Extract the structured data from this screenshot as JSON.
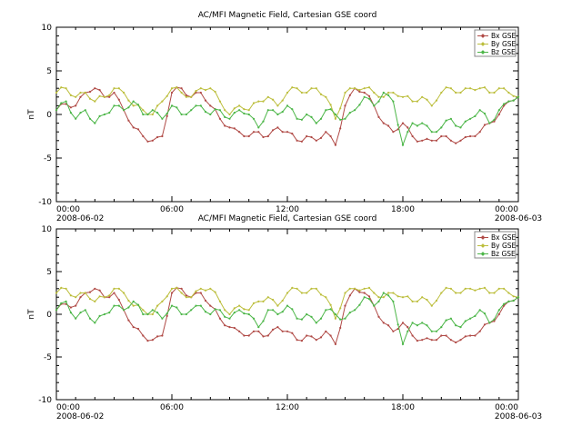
{
  "chart_data": {
    "type": "line",
    "title": "AC/MFI Magnetic Field, Cartesian GSE coord",
    "panels": [
      {
        "title": "AC/MFI Magnetic Field, Cartesian GSE coord"
      },
      {
        "title": "AC/MFI Magnetic Field, Cartesian GSE coord"
      }
    ],
    "ylabel": "nT",
    "ylim": [
      -10,
      10
    ],
    "yticks": [
      -10,
      -5,
      0,
      5,
      10
    ],
    "xlim_hours": [
      0,
      24
    ],
    "x_start_hour": 0,
    "x_step_hours": 0.25,
    "grid": false,
    "legend_position": "top-right",
    "xticks": [
      {
        "hour": 0,
        "label": "00:00",
        "date": "2008-06-02"
      },
      {
        "hour": 6,
        "label": "06:00"
      },
      {
        "hour": 12,
        "label": "12:00"
      },
      {
        "hour": 18,
        "label": "18:00"
      },
      {
        "hour": 24,
        "label": "00:00",
        "date": "2008-06-03"
      }
    ],
    "colors": {
      "axis": "#000000",
      "legend_border": "#888888",
      "background": "#ffffff"
    },
    "series": [
      {
        "name": "Bx GSE",
        "color": "#b04a46",
        "values": [
          0.5,
          1.2,
          1.2,
          0.8,
          1.0,
          2.0,
          2.5,
          2.6,
          3.0,
          2.8,
          2.0,
          2.0,
          2.5,
          1.7,
          0.5,
          -0.7,
          -1.5,
          -1.7,
          -2.5,
          -3.1,
          -3.0,
          -2.6,
          -2.5,
          -0.2,
          2.5,
          3.1,
          3.0,
          2.2,
          2.0,
          2.5,
          2.5,
          1.6,
          1.0,
          0.6,
          -0.5,
          -1.3,
          -1.5,
          -1.6,
          -2.0,
          -2.5,
          -2.5,
          -2.0,
          -2.0,
          -2.6,
          -2.5,
          -1.8,
          -1.5,
          -2.0,
          -2.0,
          -2.2,
          -3.0,
          -3.1,
          -2.5,
          -2.6,
          -3.0,
          -2.7,
          -2.0,
          -2.5,
          -3.5,
          -1.6,
          1.0,
          2.2,
          3.0,
          2.6,
          2.5,
          2.1,
          1.0,
          -0.3,
          -1.0,
          -1.3,
          -2.0,
          -1.7,
          -1.0,
          -1.5,
          -2.5,
          -3.1,
          -3.0,
          -2.8,
          -3.0,
          -3.0,
          -2.5,
          -2.5,
          -3.0,
          -3.3,
          -3.0,
          -2.6,
          -2.5,
          -2.5,
          -2.0,
          -1.2,
          -1.0,
          -0.8,
          0.0,
          1.0,
          1.5,
          1.6,
          2.0
        ]
      },
      {
        "name": "By GSE",
        "color": "#bcbe3c",
        "values": [
          2.5,
          3.1,
          3.0,
          2.2,
          2.0,
          2.5,
          2.5,
          1.8,
          1.5,
          2.1,
          2.0,
          2.2,
          3.0,
          3.0,
          2.5,
          1.6,
          1.0,
          1.1,
          0.5,
          0.0,
          0.0,
          1.0,
          1.5,
          2.1,
          3.0,
          3.1,
          2.5,
          2.0,
          2.0,
          2.7,
          3.0,
          2.8,
          3.0,
          2.6,
          1.5,
          0.5,
          0.0,
          0.7,
          1.0,
          0.6,
          0.5,
          1.3,
          1.5,
          1.5,
          2.0,
          1.7,
          1.0,
          1.6,
          2.5,
          3.1,
          3.0,
          2.5,
          2.5,
          3.0,
          3.0,
          2.3,
          2.0,
          1.1,
          -0.5,
          0.7,
          2.5,
          3.0,
          3.0,
          2.8,
          3.0,
          3.1,
          2.5,
          2.0,
          2.0,
          2.5,
          2.5,
          2.1,
          2.0,
          2.1,
          1.5,
          1.5,
          2.0,
          1.7,
          1.0,
          1.6,
          2.5,
          3.1,
          3.0,
          2.5,
          2.5,
          3.0,
          3.0,
          2.8,
          3.0,
          3.1,
          2.5,
          2.5,
          3.0,
          3.0,
          2.5,
          2.1,
          2.0
        ]
      },
      {
        "name": "Bz GSE",
        "color": "#4cb648",
        "values": [
          0.5,
          1.3,
          1.5,
          0.2,
          -0.5,
          0.2,
          0.5,
          -0.5,
          -1.0,
          -0.2,
          0.0,
          0.2,
          1.0,
          1.0,
          0.5,
          0.8,
          1.5,
          1.1,
          0.0,
          0.0,
          0.5,
          0.2,
          -0.5,
          0.1,
          1.0,
          0.8,
          0.0,
          0.0,
          0.5,
          1.0,
          1.0,
          0.3,
          0.0,
          0.6,
          0.5,
          -0.3,
          -0.5,
          0.2,
          0.5,
          0.1,
          0.0,
          -0.5,
          -1.5,
          -0.8,
          0.5,
          0.5,
          0.0,
          0.3,
          1.0,
          0.6,
          -0.5,
          -0.6,
          0.0,
          -0.3,
          -1.0,
          -0.5,
          0.5,
          0.6,
          0.0,
          -0.6,
          -0.5,
          0.2,
          0.5,
          1.1,
          2.0,
          1.8,
          1.0,
          1.5,
          2.5,
          2.2,
          1.5,
          -1.2,
          -3.5,
          -2.0,
          -1.0,
          -1.3,
          -1.0,
          -1.3,
          -2.0,
          -2.0,
          -1.5,
          -0.7,
          -0.5,
          -1.3,
          -1.5,
          -0.8,
          -0.5,
          -0.2,
          0.5,
          0.1,
          -1.0,
          -0.6,
          0.5,
          1.2,
          1.5,
          1.6,
          2.0
        ]
      }
    ]
  }
}
